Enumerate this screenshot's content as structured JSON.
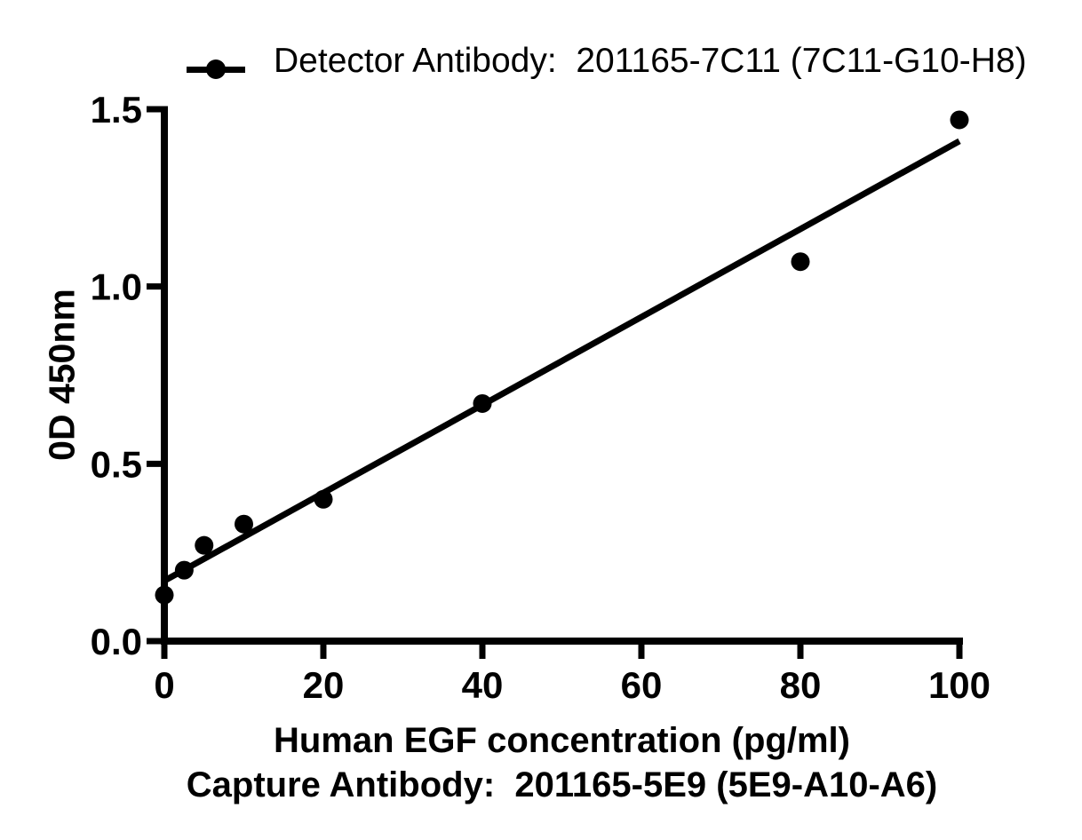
{
  "figure": {
    "background": "#ffffff"
  },
  "chart_data": {
    "type": "scatter",
    "title": "",
    "legend": {
      "position": "top",
      "marker": "filled-circle-on-line",
      "label": "Detector Antibody： 201165-7C11 (7C11-G10-H8)"
    },
    "ylabel": "0D 450nm",
    "xlabel": "Human EGF concentration (pg/ml)",
    "xlabel_line2": "Capture Antibody： 201165-5E9 (5E9-A10-A6)",
    "xlim": [
      0,
      100
    ],
    "ylim": [
      0.0,
      1.5
    ],
    "x_ticks": [
      0,
      20,
      40,
      60,
      80,
      100
    ],
    "y_ticks": [
      0.0,
      0.5,
      1.0,
      1.5
    ],
    "y_tick_decimals": 1,
    "grid": false,
    "series": [
      {
        "name": "Detector Antibody： 201165-7C11 (7C11-G10-H8)",
        "marker": "circle",
        "color": "#000000",
        "x": [
          0,
          2.5,
          5,
          10,
          20,
          40,
          80,
          100
        ],
        "y": [
          0.13,
          0.2,
          0.27,
          0.33,
          0.4,
          0.67,
          1.07,
          1.47
        ]
      }
    ],
    "fit_line": {
      "type": "linear",
      "x": [
        0,
        100
      ],
      "y": [
        0.17,
        1.41
      ]
    },
    "colors": {
      "axis": "#000000",
      "text": "#000000",
      "marker": "#000000",
      "fit_line": "#000000"
    }
  }
}
